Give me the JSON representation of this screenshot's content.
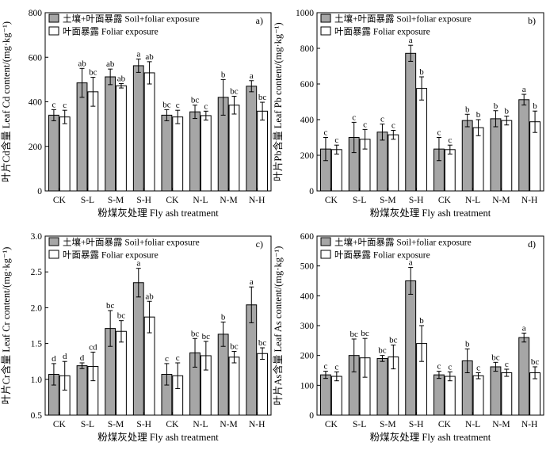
{
  "figure": {
    "legend": [
      "土壤+叶面暴露 Soil+foliar exposure",
      "叶面暴露 Foliar exposure"
    ],
    "xlabel": "粉煤灰处理 Fly ash treatment",
    "colors": {
      "soil_foliar": "#a6a6a6",
      "foliar": "#ffffff",
      "stroke": "#000000"
    }
  },
  "chart_data": [
    {
      "type": "bar",
      "tag": "a)",
      "ylabel": "叶片Cd含量 Leaf Cd content/(mg·kg⁻¹)",
      "xlabel": "粉煤灰处理 Fly ash treatment",
      "categories": [
        "CK",
        "S-L",
        "S-M",
        "S-H",
        "CK",
        "N-L",
        "N-M",
        "N-H"
      ],
      "ylim": [
        0,
        800
      ],
      "yticks": [
        0,
        200,
        400,
        600,
        800
      ],
      "series": [
        {
          "name": "土壤+叶面暴露 Soil+foliar exposure",
          "values": [
            340,
            485,
            512,
            562,
            340,
            355,
            420,
            470
          ],
          "errors": [
            25,
            65,
            35,
            30,
            25,
            30,
            80,
            25
          ],
          "labels": [
            "c",
            "ab",
            "ab",
            "a",
            "bc",
            "bc",
            "b",
            "a"
          ]
        },
        {
          "name": "叶面暴露 Foliar exposure",
          "values": [
            332,
            445,
            472,
            530,
            332,
            338,
            385,
            358
          ],
          "errors": [
            30,
            65,
            10,
            50,
            30,
            20,
            40,
            40
          ],
          "labels": [
            "c",
            "bc",
            "ab",
            "ab",
            "c",
            "c",
            "bc",
            "bc"
          ]
        }
      ]
    },
    {
      "type": "bar",
      "tag": "b)",
      "ylabel": "叶片Pb含量 Leaf Pb content/(mg·kg⁻¹)",
      "xlabel": "粉煤灰处理 Fly ash treatment",
      "categories": [
        "CK",
        "S-L",
        "S-M",
        "S-H",
        "CK",
        "N-L",
        "N-M",
        "N-H"
      ],
      "ylim": [
        0,
        1000
      ],
      "yticks": [
        0,
        200,
        400,
        600,
        800,
        1000
      ],
      "series": [
        {
          "name": "土壤+叶面暴露 Soil+foliar exposure",
          "values": [
            235,
            300,
            330,
            772,
            235,
            395,
            405,
            512
          ],
          "errors": [
            65,
            85,
            45,
            45,
            65,
            35,
            45,
            30
          ],
          "labels": [
            "c",
            "c",
            "c",
            "a",
            "c",
            "b",
            "b",
            "a"
          ]
        },
        {
          "name": "叶面暴露 Foliar exposure",
          "values": [
            232,
            290,
            315,
            575,
            232,
            355,
            395,
            388
          ],
          "errors": [
            25,
            55,
            25,
            65,
            25,
            45,
            25,
            60
          ],
          "labels": [
            "c",
            "c",
            "c",
            "b",
            "c",
            "b",
            "b",
            "b"
          ]
        }
      ]
    },
    {
      "type": "bar",
      "tag": "c)",
      "ylabel": "叶片Cr含量 Leaf Cr content/(mg·kg⁻¹)",
      "xlabel": "粉煤灰处理 Fly ash treatment",
      "categories": [
        "CK",
        "S-L",
        "S-M",
        "S-H",
        "CK",
        "N-L",
        "N-M",
        "N-H"
      ],
      "ylim": [
        0.5,
        3.0
      ],
      "yticks": [
        0.5,
        1.0,
        1.5,
        2.0,
        2.5,
        3.0
      ],
      "series": [
        {
          "name": "土壤+叶面暴露 Soil+foliar exposure",
          "values": [
            1.07,
            1.19,
            1.71,
            2.35,
            1.07,
            1.37,
            1.63,
            2.04
          ],
          "errors": [
            0.15,
            0.04,
            0.25,
            0.2,
            0.15,
            0.2,
            0.17,
            0.25
          ],
          "labels": [
            "d",
            "d",
            "bc",
            "a",
            "c",
            "bc",
            "b",
            "a"
          ]
        },
        {
          "name": "叶面暴露 Foliar exposure",
          "values": [
            1.05,
            1.18,
            1.67,
            1.87,
            1.05,
            1.33,
            1.31,
            1.36
          ],
          "errors": [
            0.2,
            0.2,
            0.15,
            0.22,
            0.18,
            0.2,
            0.08,
            0.08
          ],
          "labels": [
            "d",
            "cd",
            "bc",
            "ab",
            "c",
            "bc",
            "bc",
            "bc"
          ]
        }
      ]
    },
    {
      "type": "bar",
      "tag": "d)",
      "ylabel": "叶片As含量 Leaf As content/(mg·kg⁻¹)",
      "xlabel": "粉煤灰处理 Fly ash treatment",
      "categories": [
        "CK",
        "S-L",
        "S-M",
        "S-H",
        "CK",
        "N-L",
        "N-M",
        "N-H"
      ],
      "ylim": [
        0,
        600
      ],
      "yticks": [
        0,
        100,
        200,
        300,
        400,
        500,
        600
      ],
      "series": [
        {
          "name": "土壤+叶面暴露 Soil+foliar exposure",
          "values": [
            135,
            200,
            190,
            450,
            135,
            182,
            162,
            260
          ],
          "errors": [
            12,
            55,
            10,
            45,
            12,
            40,
            15,
            15
          ],
          "labels": [
            "c",
            "bc",
            "bc",
            "a",
            "c",
            "b",
            "bc",
            "a"
          ]
        },
        {
          "name": "叶面暴露 Foliar exposure",
          "values": [
            130,
            192,
            195,
            240,
            130,
            132,
            142,
            142
          ],
          "errors": [
            15,
            65,
            40,
            60,
            15,
            10,
            12,
            20
          ],
          "labels": [
            "c",
            "bc",
            "bc",
            "b",
            "c",
            "c",
            "c",
            "bc"
          ]
        }
      ]
    }
  ]
}
